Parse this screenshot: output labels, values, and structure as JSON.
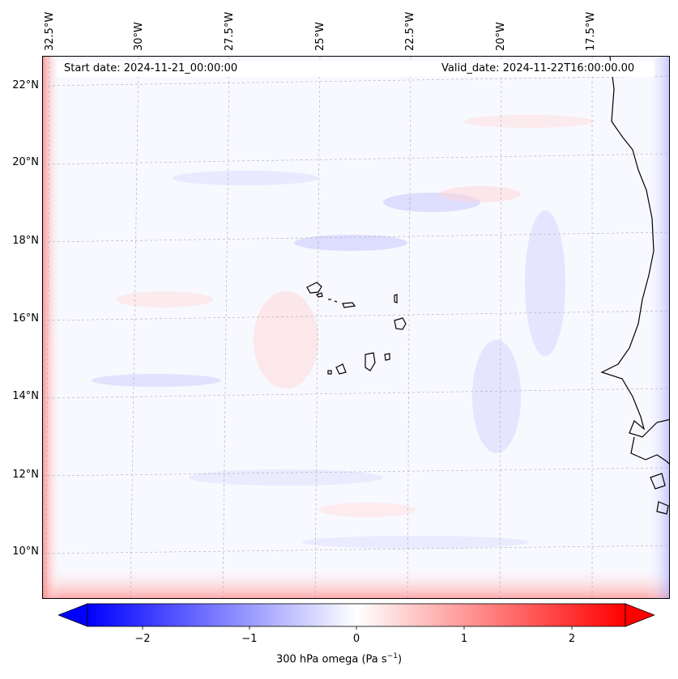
{
  "map": {
    "start_date": "Start date: 2024-11-21_00:00:00",
    "valid_date": "Valid_date: 2024-11-22T16:00:00.00",
    "lon_labels": [
      "32.5°W",
      "30°W",
      "27.5°W",
      "25°W",
      "22.5°W",
      "20°W",
      "17.5°W"
    ],
    "lat_labels": [
      "22°N",
      "20°N",
      "18°N",
      "16°N",
      "14°N",
      "12°N",
      "10°N"
    ]
  },
  "colorbar": {
    "ticks": [
      "−2",
      "−1",
      "0",
      "1",
      "2"
    ],
    "tick_values": [
      -2,
      -1,
      0,
      1,
      2
    ],
    "range": [
      -2.5,
      2.5
    ],
    "label": "300 hPa omega (Pa s",
    "label_sup": "−1",
    "label_end": ")",
    "colors": {
      "low": "#0000ff",
      "mid": "#ffffff",
      "high": "#ff0000"
    }
  }
}
